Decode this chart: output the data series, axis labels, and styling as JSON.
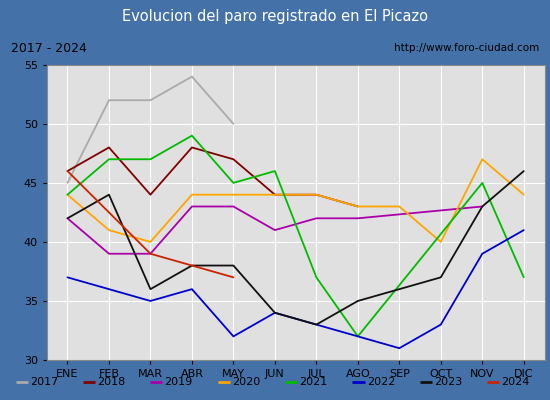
{
  "title": "Evolucion del paro registrado en El Picazo",
  "subtitle_left": "2017 - 2024",
  "subtitle_right": "http://www.foro-ciudad.com",
  "title_bg": "#4472a8",
  "title_color": "white",
  "subtitle_bg": "#d4d4d4",
  "months": [
    "ENE",
    "FEB",
    "MAR",
    "ABR",
    "MAY",
    "JUN",
    "JUL",
    "AGO",
    "SEP",
    "OCT",
    "NOV",
    "DIC"
  ],
  "ylim": [
    30,
    55
  ],
  "yticks": [
    30,
    35,
    40,
    45,
    50,
    55
  ],
  "series": {
    "2017": {
      "color": "#aaaaaa",
      "values": [
        45,
        52,
        52,
        54,
        50,
        null,
        null,
        null,
        null,
        null,
        null,
        null
      ]
    },
    "2018": {
      "color": "#800000",
      "values": [
        46,
        48,
        44,
        48,
        47,
        44,
        44,
        43,
        null,
        null,
        null,
        null
      ]
    },
    "2019": {
      "color": "#aa00aa",
      "values": [
        42,
        39,
        39,
        43,
        43,
        41,
        42,
        42,
        null,
        null,
        43,
        null
      ]
    },
    "2020": {
      "color": "#ffa500",
      "values": [
        44,
        41,
        40,
        44,
        44,
        44,
        44,
        43,
        43,
        40,
        47,
        44
      ]
    },
    "2021": {
      "color": "#00bb00",
      "values": [
        44,
        47,
        47,
        49,
        45,
        46,
        37,
        32,
        null,
        null,
        45,
        37
      ]
    },
    "2022": {
      "color": "#0000cc",
      "values": [
        37,
        36,
        35,
        36,
        32,
        34,
        33,
        32,
        31,
        33,
        39,
        41
      ]
    },
    "2023": {
      "color": "#111111",
      "values": [
        42,
        44,
        36,
        38,
        38,
        34,
        33,
        35,
        36,
        37,
        43,
        46
      ]
    },
    "2024": {
      "color": "#cc2200",
      "values": [
        46,
        null,
        39,
        38,
        37,
        null,
        null,
        null,
        null,
        null,
        null,
        null
      ]
    }
  },
  "legend_order": [
    "2017",
    "2018",
    "2019",
    "2020",
    "2021",
    "2022",
    "2023",
    "2024"
  ],
  "plot_bg": "#e0e0e0",
  "grid_color": "#ffffff",
  "tick_label_fontsize": 8,
  "legend_fontsize": 8
}
